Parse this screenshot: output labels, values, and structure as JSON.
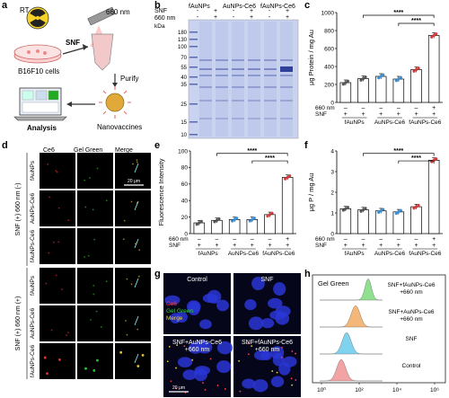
{
  "panel_labels": [
    "a",
    "b",
    "c",
    "d",
    "e",
    "f",
    "g",
    "h"
  ],
  "panel_a": {
    "rt": "RT",
    "wavelength": "660 nm",
    "cells": "B16F10 cells",
    "snf": "SNF",
    "purify": "Purify",
    "analysis": "Analysis",
    "nanovaccines": "Nanovaccines"
  },
  "panel_b": {
    "row_snf": "SNF",
    "row_660": "660 nm",
    "groups": [
      "fAuNPs",
      "AuNPs-Ce6",
      "fAuNPs-Ce6"
    ],
    "signs": [
      "-",
      "+",
      "-",
      "+",
      "-",
      "+"
    ],
    "unit": "kDa",
    "markers": [
      "180",
      "130",
      "100",
      "70",
      "55",
      "40",
      "35",
      "25",
      "15",
      "10"
    ]
  },
  "bar_signs": {
    "row1_label": "660 nm",
    "row2_label": "SNF",
    "row1": [
      "–",
      "–",
      "–",
      "–",
      "–",
      "+"
    ],
    "row2": [
      "+",
      "+",
      "+",
      "+",
      "+",
      "+"
    ],
    "groups": [
      "fAuNPs",
      "AuNPs-Ce6",
      "fAuNPs-Ce6"
    ]
  },
  "panel_d": {
    "columns": [
      "Ce6",
      "Gel Green",
      "Merge"
    ],
    "scalebar": "20 μm",
    "block_labels": [
      "SNF (+) 660 nm (-)",
      "SNF (+) 660 nm (+)"
    ],
    "row_labels": [
      "fAuNPs",
      "AuNPs-Ce6",
      "fAuNPs-Ce6",
      "fAuNPs",
      "AuNPs-Ce6",
      "fAuNPs-Ce6"
    ]
  },
  "panel_g": {
    "tiles": [
      "Control",
      "SNF",
      "SNF+AuNPs-Ce6\n+660 nm",
      "SNF+fAuNPs-Ce6\n+660 nm"
    ],
    "legend": [
      "Ce6",
      "Gel Green",
      "Merge"
    ],
    "legend_colors": [
      "#ff3b3b",
      "#3cd13c",
      "#f1d230"
    ],
    "scalebar": "20 μm"
  },
  "panel_h": {
    "title": "Gel Green",
    "labels": [
      "SNF+fAuNPs-Ce6\n+660 nm",
      "SNF+AuNPs-Ce6\n+660 nm",
      "SNF",
      "Control"
    ],
    "colors": [
      "#8fe08f",
      "#f4b77a",
      "#7fd3ef",
      "#f2a3a3"
    ],
    "ticks": [
      "10⁰",
      "10²",
      "10⁴",
      "10⁶"
    ]
  },
  "chart_data": [
    {
      "type": "bar",
      "panel": "c",
      "categories": [
        "1",
        "2",
        "3",
        "4",
        "5",
        "6"
      ],
      "values": [
        220,
        265,
        290,
        260,
        365,
        745
      ],
      "colors": [
        "#555555",
        "#555555",
        "#3a8fd6",
        "#3a8fd6",
        "#d83a3a",
        "#d83a3a"
      ],
      "ylabel": "μg Protein / mg Au",
      "ylim": [
        0,
        1000
      ],
      "yticks": [
        "0",
        "200",
        "400",
        "600",
        "800",
        "1000"
      ],
      "significance": [
        "****",
        "****"
      ]
    },
    {
      "type": "bar",
      "panel": "e",
      "categories": [
        "1",
        "2",
        "3",
        "4",
        "5",
        "6"
      ],
      "values": [
        13,
        16,
        17,
        17,
        23,
        68
      ],
      "colors": [
        "#555555",
        "#555555",
        "#3a8fd6",
        "#3a8fd6",
        "#d83a3a",
        "#d83a3a"
      ],
      "ylabel": "Fluorescence Intensity",
      "ylim": [
        0,
        100
      ],
      "yticks": [
        "0",
        "20",
        "40",
        "60",
        "80",
        "100"
      ],
      "significance": [
        "****",
        "****"
      ]
    },
    {
      "type": "bar",
      "panel": "f",
      "categories": [
        "1",
        "2",
        "3",
        "4",
        "5",
        "6"
      ],
      "values": [
        1.2,
        1.15,
        1.1,
        1.05,
        1.3,
        3.55
      ],
      "colors": [
        "#555555",
        "#555555",
        "#3a8fd6",
        "#3a8fd6",
        "#d83a3a",
        "#d83a3a"
      ],
      "ylabel": "μg P / mg Au",
      "ylim": [
        0,
        4
      ],
      "yticks": [
        "0",
        "1",
        "2",
        "3",
        "4"
      ],
      "significance": [
        "****",
        "****"
      ]
    }
  ]
}
